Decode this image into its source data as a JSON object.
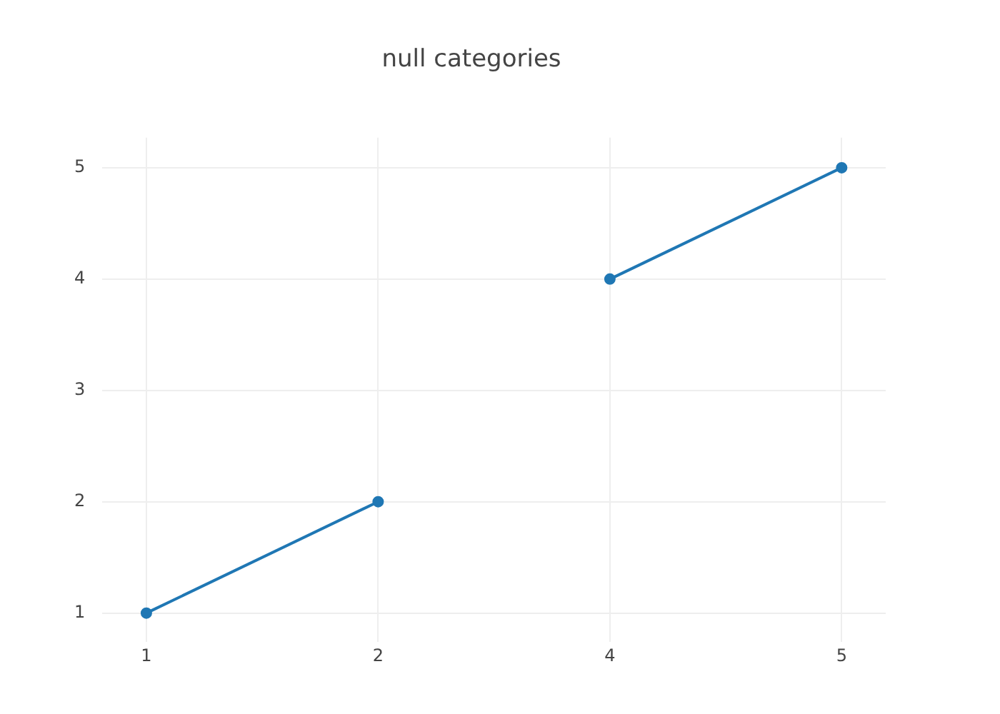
{
  "chart_data": {
    "type": "line",
    "title": "null categories",
    "categories": [
      "1",
      "2",
      "4",
      "5"
    ],
    "series": [
      {
        "color": "#1f77b4",
        "values": [
          1,
          2,
          null,
          null
        ]
      },
      {
        "color": "#1f77b4",
        "values": [
          null,
          null,
          4,
          5
        ]
      }
    ],
    "ylim": [
      0.74,
      5.27
    ],
    "yticks": [
      1,
      2,
      3,
      4,
      5
    ],
    "grid": true,
    "marker": "circle",
    "legend": false
  }
}
